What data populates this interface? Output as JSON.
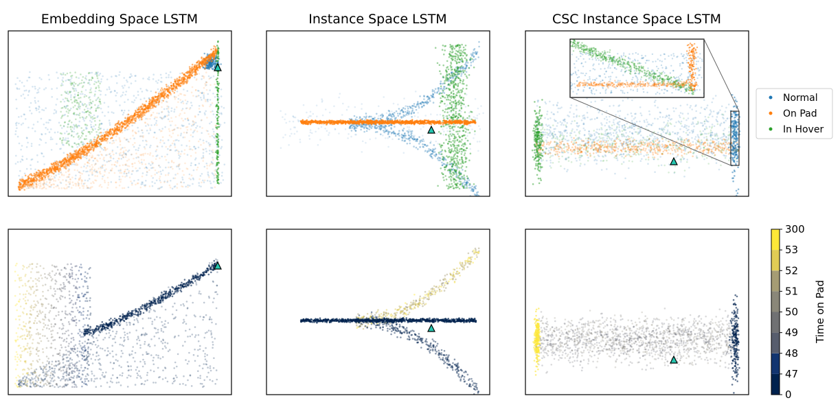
{
  "colors": {
    "normal": "#1f77b4",
    "on_pad": "#ff7f0e",
    "in_hover": "#2ca02c",
    "marker_fill": "#26c6b0",
    "cividis_stops": [
      "#00224e",
      "#123570",
      "#3b496c",
      "#575d6d",
      "#707173",
      "#8a8779",
      "#a59c74",
      "#c3b369",
      "#e1cc55",
      "#fee838"
    ]
  },
  "icons": {
    "highlight_marker": "triangle-marker-icon"
  },
  "panels": [
    {
      "title": "Embedding Space LSTM"
    },
    {
      "title": "Instance Space LSTM"
    },
    {
      "title": "CSC Instance Space LSTM"
    }
  ],
  "legend": {
    "placement": "right of top-right panel",
    "entries": [
      "Normal",
      "On Pad",
      "In Hover"
    ]
  },
  "colorbar": {
    "label": "Time on Pad",
    "ticks": [
      "0",
      "47",
      "48",
      "49",
      "50",
      "51",
      "52",
      "53",
      "300"
    ],
    "levels": 8,
    "colormap": "cividis (discrete)"
  },
  "chart_data": [
    {
      "type": "scatter",
      "title": "Embedding Space LSTM",
      "row": 1,
      "color_by": "category",
      "axes": "no ticks",
      "series": [
        {
          "name": "Normal",
          "description_points": "diffuse cloud over whole panel, dense cluster top-right"
        },
        {
          "name": "On Pad",
          "description_points": "dense rising curve from bottom-left to top-right plus diffuse fan below"
        },
        {
          "name": "In Hover",
          "description_points": "dense vertical block left-center, vertical line at right edge"
        }
      ]
    },
    {
      "type": "scatter",
      "title": "Instance Space LSTM",
      "row": 1,
      "color_by": "category",
      "axes": "no ticks",
      "series": [
        {
          "name": "Normal"
        },
        {
          "name": "On Pad"
        },
        {
          "name": "In Hover"
        }
      ]
    },
    {
      "type": "scatter",
      "title": "CSC Instance Space LSTM",
      "row": 1,
      "color_by": "category",
      "axes": "no ticks",
      "inset": "zoom of right edge region",
      "series": [
        {
          "name": "Normal"
        },
        {
          "name": "On Pad"
        },
        {
          "name": "In Hover"
        }
      ]
    },
    {
      "type": "scatter",
      "title": "",
      "row": 2,
      "color_by": "Time on Pad",
      "axes": "no ticks"
    },
    {
      "type": "scatter",
      "title": "",
      "row": 2,
      "color_by": "Time on Pad",
      "axes": "no ticks"
    },
    {
      "type": "scatter",
      "title": "",
      "row": 2,
      "color_by": "Time on Pad",
      "axes": "no ticks"
    }
  ]
}
